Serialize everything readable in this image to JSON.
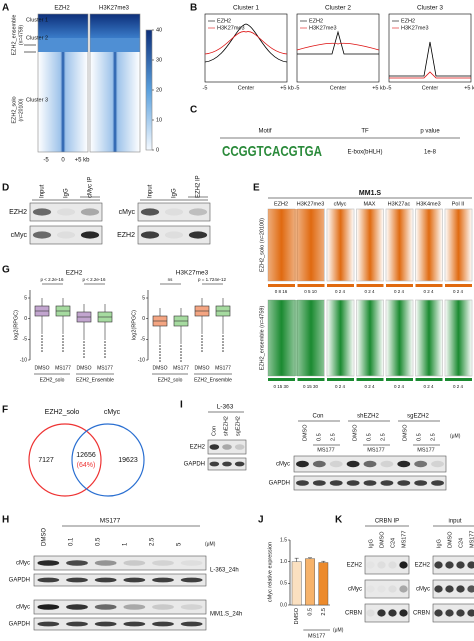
{
  "panels": {
    "A": {
      "label": "A",
      "columns": [
        "EZH2",
        "H3K27me3"
      ],
      "clusters": [
        "Cluster 1",
        "Cluster 2",
        "Cluster 3"
      ],
      "groups": [
        {
          "name": "EZH2_ensemble",
          "n": "(n=4759)"
        },
        {
          "name": "EZH2_solo",
          "n": "(n=20100)"
        }
      ],
      "xticks": [
        "-5",
        "0",
        "+5 kb"
      ],
      "colorbar": [
        40,
        30,
        20,
        10,
        0
      ]
    },
    "B": {
      "label": "B",
      "titles": [
        "Cluster 1",
        "Cluster 2",
        "Cluster 3"
      ],
      "legend": [
        "EZH2",
        "H3K27me3"
      ],
      "xticks": [
        "-5",
        "Center",
        "+5 kb"
      ]
    },
    "C": {
      "label": "C",
      "headers": [
        "Motif",
        "TF",
        "p value"
      ],
      "motif": "CCGGTCACGTGA",
      "tf": "E-box(bHLH)",
      "p": "1e-8"
    },
    "D": {
      "label": "D",
      "blots": [
        {
          "lanes": [
            "Input",
            "IgG",
            "cMyc IP"
          ],
          "rows": [
            "EZH2",
            "cMyc"
          ]
        },
        {
          "lanes": [
            "Input",
            "IgG",
            "EZH2 IP"
          ],
          "rows": [
            "cMyc",
            "EZH2"
          ]
        }
      ]
    },
    "E": {
      "label": "E",
      "title": "MM1.S",
      "columns": [
        "EZH2",
        "H3K27me3",
        "cMyc",
        "MAX",
        "H3K27ac",
        "H3K4me3",
        "Pol II"
      ],
      "rows": [
        "EZH2_solo (n=20100)",
        "EZH2_ensemble (n=4759)"
      ],
      "scales": [
        [
          "0 8 16",
          "0 5 10",
          "0 2 4",
          "0 2 4",
          "0 2 4",
          "0 2 4",
          "0 2 4"
        ],
        [
          "0 15 30",
          "0 15 30",
          "0 2 4",
          "0 2 4",
          "0 2 4",
          "0 2 4",
          "0 2 4"
        ]
      ]
    },
    "F": {
      "label": "F",
      "sets": [
        "EZH2_solo",
        "cMyc"
      ],
      "counts": [
        7127,
        12656,
        19623
      ],
      "overlap_pct": "(64%)"
    },
    "G": {
      "label": "G",
      "plots": [
        {
          "title": "EZH2",
          "pvals": [
            "p < 2.2e-16",
            "p < 2.2e-16"
          ]
        },
        {
          "title": "H3K27me3",
          "pvals": [
            "ns",
            "p = 1.724e-12"
          ]
        }
      ],
      "ylabel": "log2(RPGC)",
      "yticks": [
        5,
        0,
        -5,
        -10
      ],
      "xlabels": [
        "DMSO",
        "MS177",
        "DMSO",
        "MS177"
      ],
      "groups": [
        "EZH2_solo",
        "EZH2_Ensemble"
      ]
    },
    "H": {
      "label": "H",
      "treatment": "MS177",
      "lanes": [
        "DMSO",
        "0.1",
        "0.5",
        "1",
        "2.5",
        "5"
      ],
      "unit": "(μM)",
      "blots": [
        {
          "rows": [
            "cMyc",
            "GAPDH"
          ],
          "cell": "L-363_24h"
        },
        {
          "rows": [
            "cMyc",
            "GAPDH"
          ],
          "cell": "MM1.S_24h"
        }
      ]
    },
    "I": {
      "label": "I",
      "left": {
        "title": "L-363",
        "lanes": [
          "Con",
          "shEZH2",
          "sgEZH2"
        ],
        "rows": [
          "EZH2",
          "GAPDH"
        ]
      },
      "right": {
        "groups": [
          "Con",
          "shEZH2",
          "sgEZH2"
        ],
        "lanes": [
          "DMSO",
          "0.5",
          "2.5"
        ],
        "treatment": "MS177",
        "unit": "(μM)",
        "rows": [
          "cMyc",
          "GAPDH"
        ]
      }
    },
    "K": {
      "label": "K",
      "blots": [
        {
          "title": "CRBN IP",
          "lanes": [
            "IgG",
            "DMSO",
            "C24",
            "MS177"
          ],
          "rows": [
            "EZH2",
            "cMyc",
            "CRBN"
          ]
        },
        {
          "title": "input",
          "lanes": [
            "IgG",
            "DMSO",
            "C24",
            "MS177"
          ],
          "rows": [
            "EZH2",
            "cMyc",
            "CRBN"
          ]
        }
      ]
    }
  },
  "chart_data": {
    "type": "bar",
    "panel_label": "J",
    "ylabel": "cMyc relative expression",
    "categories": [
      "DMSO",
      "0.5",
      "2.5"
    ],
    "values": [
      1.0,
      1.07,
      0.98
    ],
    "errors": [
      0.08,
      0.02,
      0.03
    ],
    "colors": [
      "#fbe0c0",
      "#f7b36b",
      "#ec8a2c"
    ],
    "ylim": [
      0,
      1.5
    ],
    "yticks": [
      {
        "value": 0,
        "label": "0.0"
      },
      0.5,
      {
        "value": 1,
        "label": "1.0"
      },
      1.5
    ],
    "xgroup": "MS177",
    "unit": "(μM)"
  }
}
